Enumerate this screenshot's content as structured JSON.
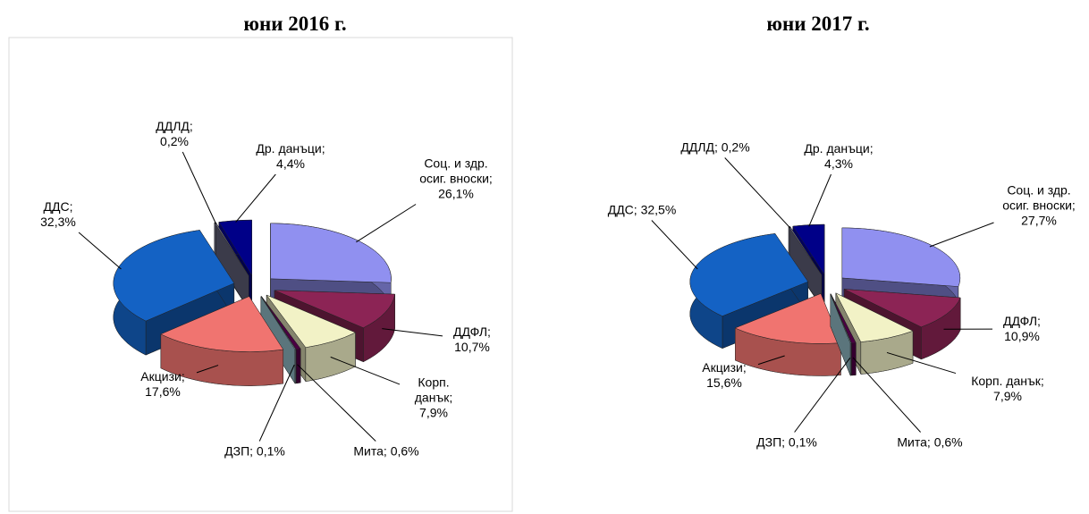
{
  "chart_data": [
    {
      "type": "pie",
      "title": "юни 2016 г.",
      "values": [
        26.1,
        10.7,
        7.9,
        0.6,
        0.1,
        17.6,
        32.3,
        0.2,
        4.4
      ],
      "value_labels": [
        "Соц. и здр. осиг. вноски; 26,1%",
        "ДДФЛ; 10,7%",
        "Корп. данък; 7,9%",
        "Мита; 0,6%",
        "ДЗП; 0,1%",
        "Акцизи; 17,6%",
        "ДДС; 32,3%",
        "ДДЛД; 0,2%",
        "Др. данъци; 4,4%"
      ],
      "colors": [
        "#9090f0",
        "#8c2455",
        "#f2f2c6",
        "#4a0042",
        "#a6d4e2",
        "#f07470",
        "#1462c4",
        "#6c6c86",
        "#000088"
      ]
    },
    {
      "type": "pie",
      "title": "юни 2017 г.",
      "values": [
        27.7,
        10.9,
        7.9,
        0.6,
        0.1,
        15.6,
        32.5,
        0.2,
        4.3
      ],
      "value_labels": [
        "Соц. и здр. осиг. вноски; 27,7%",
        "ДДФЛ; 10,9%",
        "Корп. данък; 7,9%",
        "Мита; 0,6%",
        "ДЗП; 0,1%",
        "Акцизи; 15,6%",
        "ДДС; 32,5%",
        "ДДЛД; 0,2%",
        "Др. данъци; 4,3%"
      ],
      "colors": [
        "#9090f0",
        "#8c2455",
        "#f2f2c6",
        "#4a0042",
        "#a6d4e2",
        "#f07470",
        "#1462c4",
        "#6c6c86",
        "#000088"
      ]
    }
  ]
}
